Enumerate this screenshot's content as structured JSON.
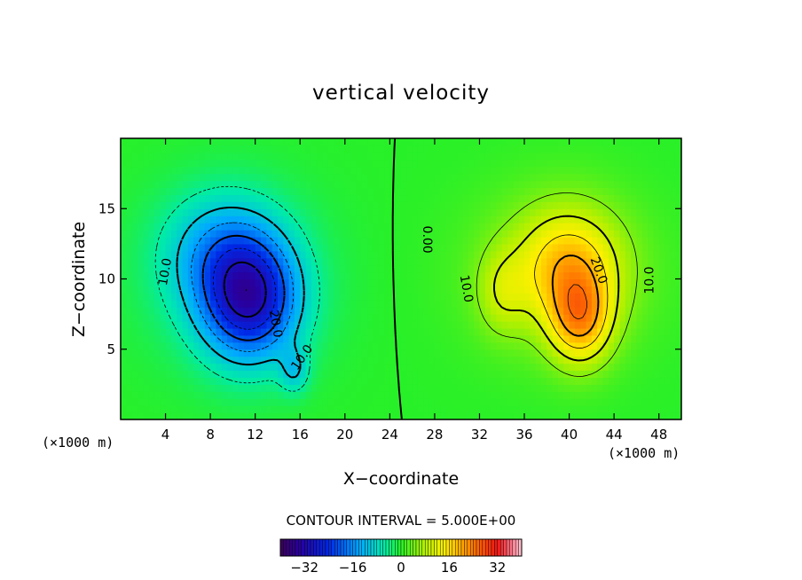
{
  "chart_data": {
    "type": "heatmap",
    "title": "vertical velocity",
    "xlabel": "X−coordinate",
    "ylabel": "Z−coordinate",
    "x_unit": "(×1000 m)",
    "z_unit": "(×1000 m)",
    "xlim": [
      0,
      50
    ],
    "ylim": [
      0,
      20
    ],
    "xticks": [
      4,
      8,
      12,
      16,
      20,
      24,
      28,
      32,
      36,
      40,
      44,
      48
    ],
    "xtick_labels": [
      "4",
      "8",
      "12",
      "16",
      "20",
      "24",
      "28",
      "32",
      "36",
      "40",
      "44",
      "48"
    ],
    "yticks": [
      5,
      10,
      15
    ],
    "ytick_labels": [
      "5",
      "10",
      "15"
    ],
    "contour_interval_text": "CONTOUR INTERVAL = 5.000E+00",
    "contour_interval": 5.0,
    "contour_labels": [
      {
        "text": "10.0",
        "x": 4.0,
        "z": 10.5,
        "rotate": -80
      },
      {
        "text": "20.0",
        "x": 13.8,
        "z": 6.8,
        "rotate": 80
      },
      {
        "text": "10.0",
        "x": 16.2,
        "z": 4.4,
        "rotate": -55
      },
      {
        "text": "0.00",
        "x": 27.3,
        "z": 12.8,
        "rotate": 90
      },
      {
        "text": "10.0",
        "x": 30.8,
        "z": 9.3,
        "rotate": 80
      },
      {
        "text": "20.0",
        "x": 42.6,
        "z": 10.6,
        "rotate": 70
      },
      {
        "text": "10.0",
        "x": 47.2,
        "z": 9.9,
        "rotate": -90
      }
    ],
    "features": [
      {
        "name": "downdraft core",
        "x": 11.5,
        "z": 8.5,
        "sx": 4.2,
        "sz": 4.2,
        "amp": -26
      },
      {
        "name": "downdraft upper lobe",
        "x": 9.0,
        "z": 12.0,
        "sx": 5.0,
        "sz": 4.0,
        "amp": -10
      },
      {
        "name": "downdraft outer",
        "x": 10.0,
        "z": 10.0,
        "sx": 8.0,
        "sz": 6.5,
        "amp": -5
      },
      {
        "name": "downdraft tail",
        "x": 15.5,
        "z": 3.5,
        "sx": 1.3,
        "sz": 1.6,
        "amp": -8
      },
      {
        "name": "updraft core",
        "x": 41.0,
        "z": 7.0,
        "sx": 2.8,
        "sz": 3.2,
        "amp": 16
      },
      {
        "name": "updraft upper",
        "x": 40.0,
        "z": 11.0,
        "sx": 4.5,
        "sz": 4.0,
        "amp": 13
      },
      {
        "name": "updraft left lobe",
        "x": 34.0,
        "z": 9.0,
        "sx": 2.2,
        "sz": 3.0,
        "amp": 6
      },
      {
        "name": "updraft outer",
        "x": 39.0,
        "z": 10.5,
        "sx": 8.0,
        "sz": 6.0,
        "amp": 6
      }
    ],
    "colorbar": {
      "min": -40,
      "max": 40,
      "ticks": [
        -32,
        -16,
        0,
        16,
        32
      ],
      "tick_labels": [
        "−32",
        "−16",
        "0",
        "16",
        "32"
      ]
    }
  }
}
